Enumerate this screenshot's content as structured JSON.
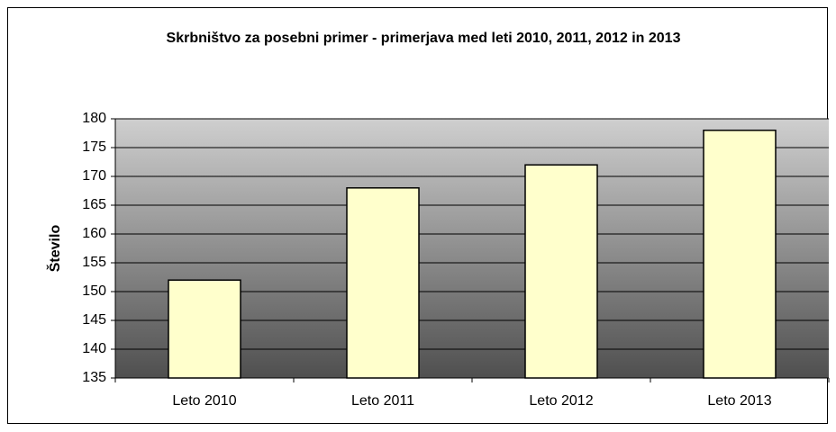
{
  "chart_data": {
    "type": "bar",
    "title": "Skrbništvo za posebni primer - primerjava med leti 2010, 2011, 2012 in 2013",
    "y_label": "Število",
    "categories": [
      "Leto 2010",
      "Leto 2011",
      "Leto 2012",
      "Leto 2013"
    ],
    "values": [
      152,
      168,
      172,
      178
    ],
    "color": "#ffffcc",
    "ylim": [
      135,
      180
    ],
    "yticks": [
      135,
      140,
      145,
      150,
      155,
      160,
      165,
      170,
      175,
      180
    ],
    "grid": true
  }
}
